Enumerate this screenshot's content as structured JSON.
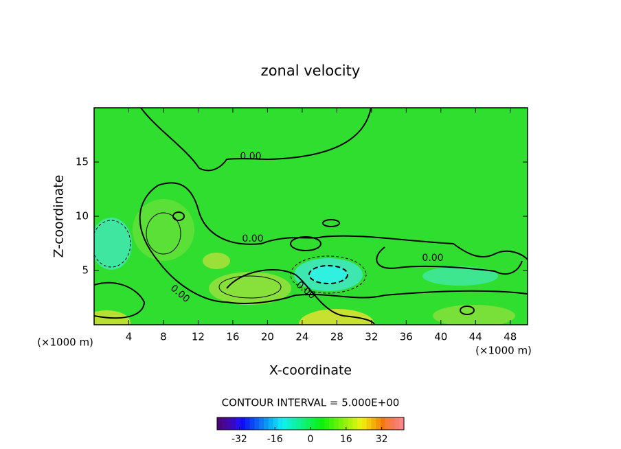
{
  "chart_data": {
    "type": "contour",
    "title": "zonal velocity",
    "x_label": "X-coordinate",
    "y_label": "Z-coordinate",
    "x_unit_label": "(×1000 m)",
    "y_unit_label": "(×1000 m)",
    "xlim": [
      0,
      50
    ],
    "xticks": [
      4,
      8,
      12,
      16,
      20,
      24,
      28,
      32,
      36,
      40,
      44,
      48
    ],
    "ylim": [
      0,
      20
    ],
    "yticks": [
      5,
      10,
      15
    ],
    "contour_labels": [
      "0.00",
      "0.00",
      "0.00",
      "0.00",
      "0.00"
    ],
    "contour_interval_label": "CONTOUR INTERVAL = 5.000E+00",
    "colorbar": {
      "clim": [
        -42,
        42
      ],
      "ticks": [
        -32,
        -16,
        0,
        16,
        32
      ]
    }
  }
}
